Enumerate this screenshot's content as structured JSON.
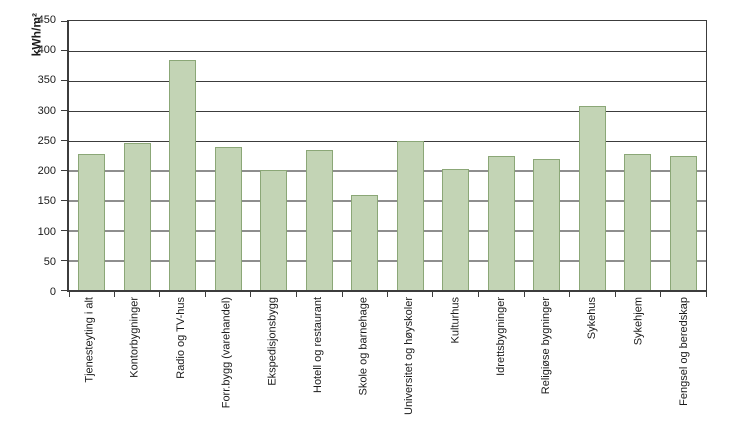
{
  "chart_data": {
    "type": "bar",
    "title": "",
    "xlabel": "",
    "ylabel": "kWh/m²",
    "categories": [
      "Tjenesteyting i alt",
      "Kontorbygninger",
      "Radio og TV-hus",
      "Forr.bygg (varehandel)",
      "Ekspedisjonsbygg",
      "Hotell og restaurant",
      "Skole og barnehage",
      "Universitet og høyskoler",
      "Kulturhus",
      "Idrettsbygninger",
      "Religiøse bygninger",
      "Sykehus",
      "Sykehjem",
      "Fengsel og beredskap"
    ],
    "values": [
      227,
      246,
      385,
      240,
      201,
      234,
      159,
      249,
      202,
      224,
      220,
      308,
      228,
      224
    ],
    "ylim": [
      0,
      450
    ],
    "yticks": [
      0,
      50,
      100,
      150,
      200,
      250,
      300,
      350,
      400,
      450
    ],
    "grid": true,
    "legend": null,
    "bar_fill": "#c3d4b5",
    "bar_border": "#8ba777"
  },
  "colors": {
    "dark_line": "#3c3c3c",
    "gray_line": "#8e8e8e",
    "text": "#1a1a1a",
    "background": "#ffffff"
  }
}
